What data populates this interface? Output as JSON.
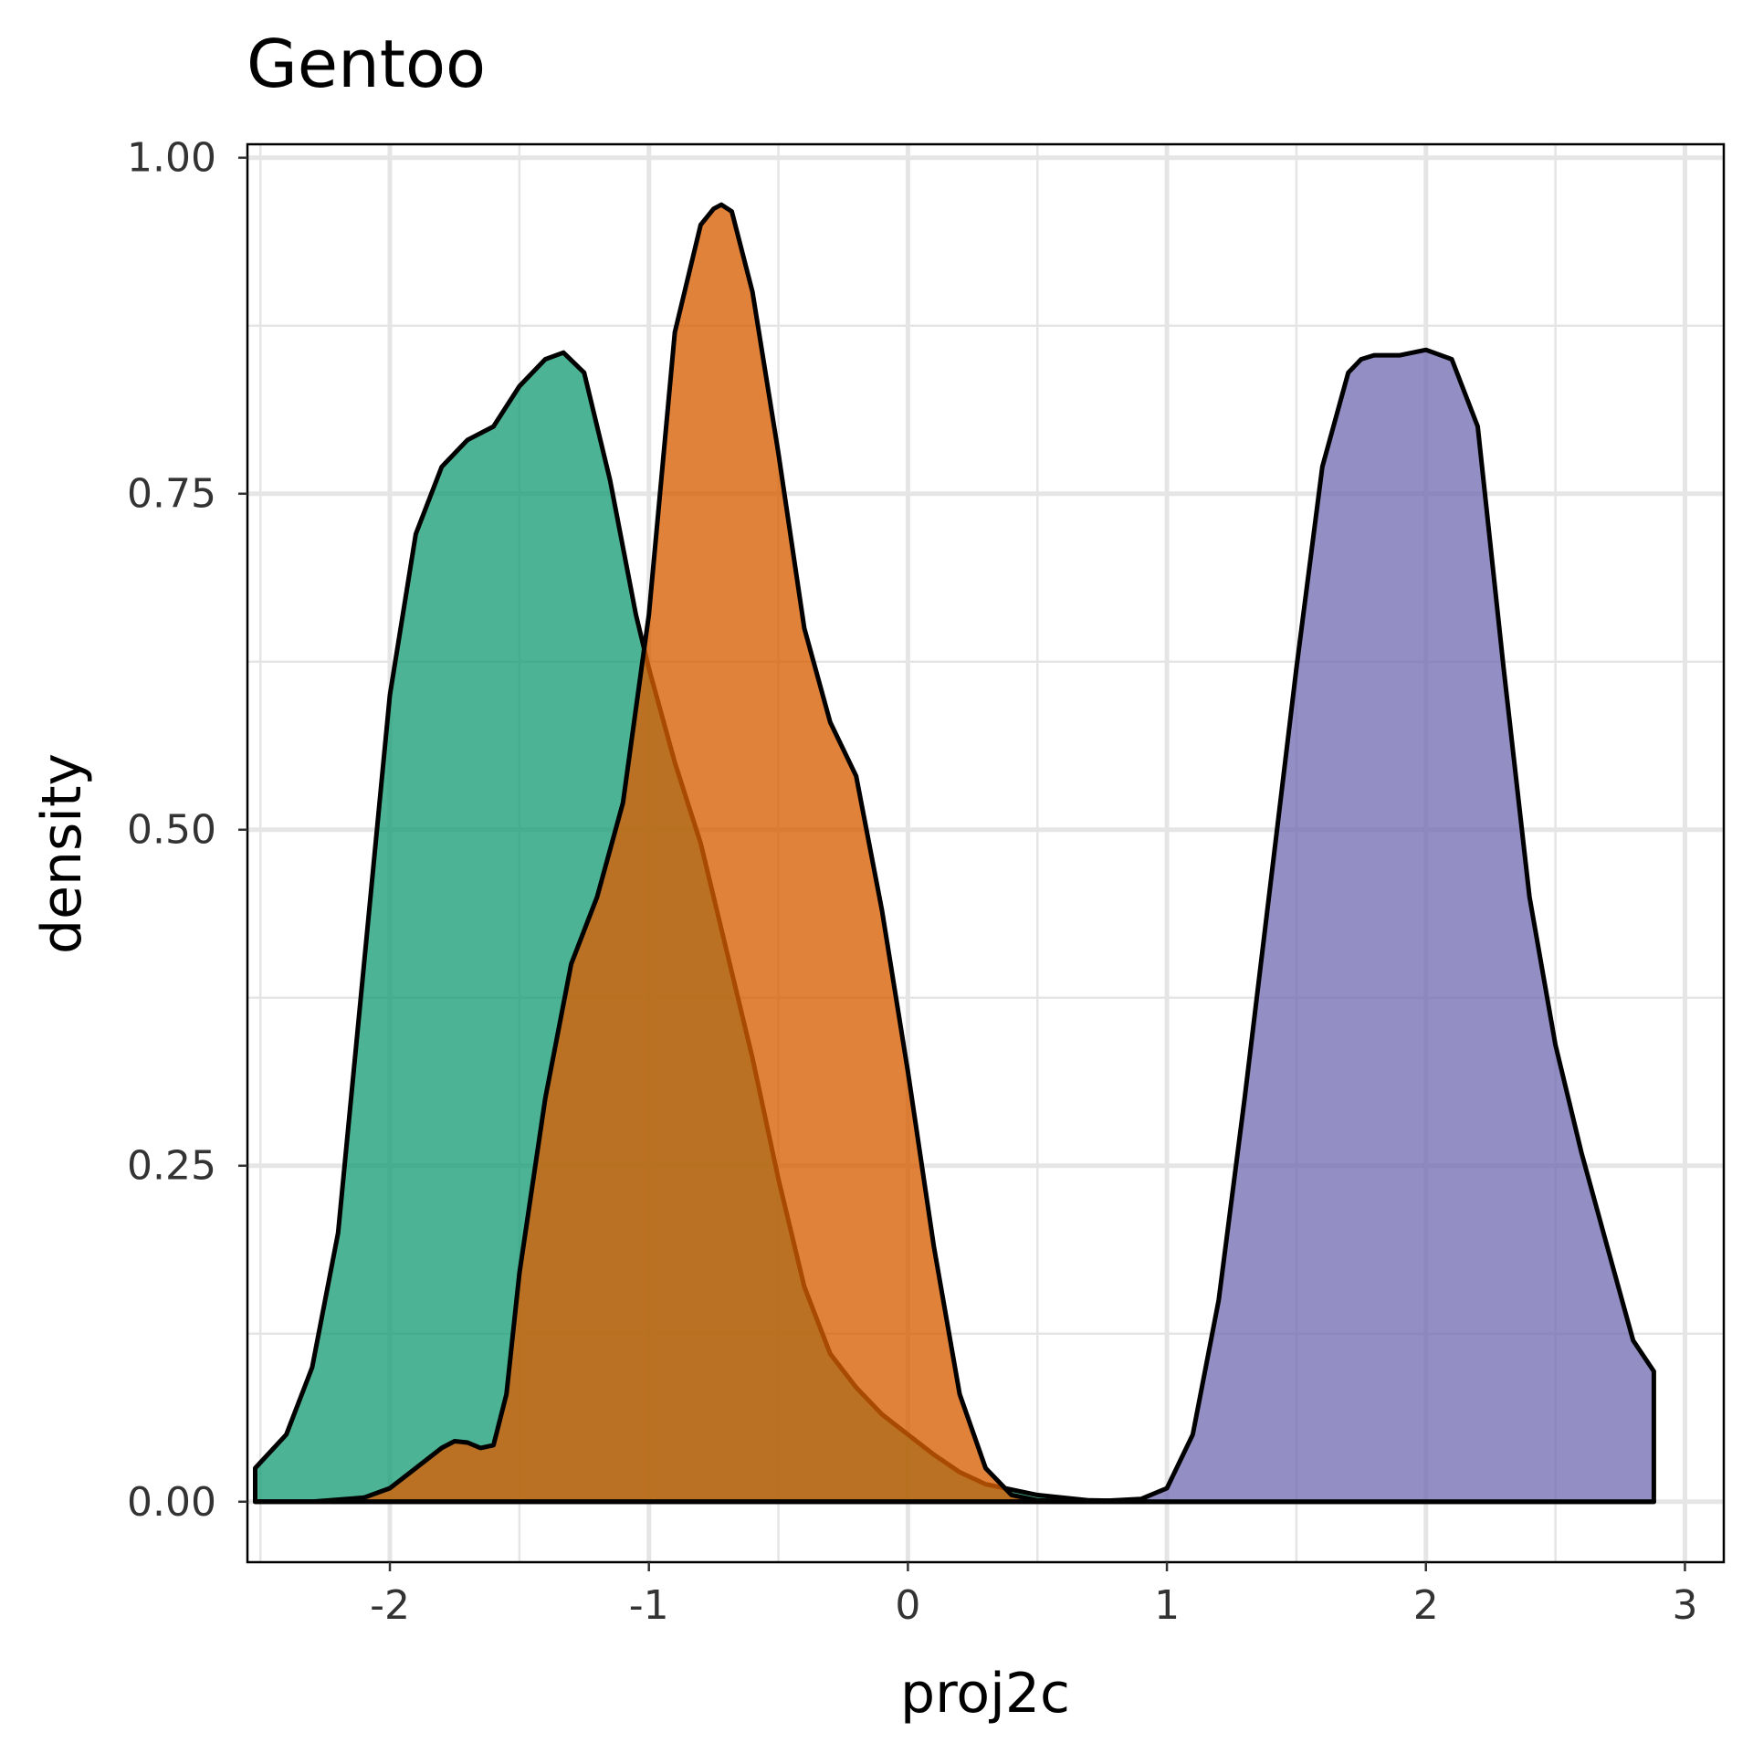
{
  "chart_data": {
    "type": "area",
    "title": "Gentoo",
    "xlabel": "proj2c",
    "ylabel": "density",
    "xlim": [
      -2.55,
      3.15
    ],
    "ylim": [
      -0.045,
      1.01
    ],
    "x_ticks": [
      -2,
      -1,
      0,
      1,
      2,
      3
    ],
    "x_tick_labels": [
      "-2",
      "-1",
      "0",
      "1",
      "2",
      "3"
    ],
    "y_ticks": [
      0,
      0.25,
      0.5,
      0.75,
      1
    ],
    "y_tick_labels": [
      "0.00",
      "0.25",
      "0.50",
      "0.75",
      "1.00"
    ],
    "x_minor_ticks": [
      -2.5,
      -1.5,
      -0.5,
      0.5,
      1.5,
      2.5
    ],
    "y_minor_ticks": [
      0.125,
      0.375,
      0.625,
      0.875
    ],
    "grid": true,
    "legend": "none",
    "series": [
      {
        "color": "#1b9e77",
        "x": [
          -2.52,
          -2.4,
          -2.3,
          -2.2,
          -2.1,
          -2.0,
          -1.9,
          -1.8,
          -1.7,
          -1.6,
          -1.5,
          -1.4,
          -1.33,
          -1.25,
          -1.15,
          -1.05,
          -1.0,
          -0.9,
          -0.8,
          -0.7,
          -0.6,
          -0.5,
          -0.4,
          -0.3,
          -0.2,
          -0.1,
          0.0,
          0.1,
          0.2,
          0.3,
          0.5,
          0.7,
          1.0,
          1.5,
          2.0,
          2.5,
          2.88
        ],
        "y": [
          0.025,
          0.05,
          0.1,
          0.2,
          0.4,
          0.6,
          0.72,
          0.77,
          0.79,
          0.8,
          0.83,
          0.85,
          0.855,
          0.84,
          0.76,
          0.66,
          0.62,
          0.55,
          0.49,
          0.41,
          0.33,
          0.24,
          0.16,
          0.11,
          0.085,
          0.065,
          0.05,
          0.035,
          0.022,
          0.013,
          0.005,
          0.001,
          0,
          0,
          0,
          0,
          0
        ]
      },
      {
        "color": "#d95f02",
        "x": [
          -2.52,
          -2.3,
          -2.1,
          -2.0,
          -1.9,
          -1.8,
          -1.75,
          -1.7,
          -1.65,
          -1.6,
          -1.55,
          -1.5,
          -1.4,
          -1.3,
          -1.2,
          -1.1,
          -1.0,
          -0.9,
          -0.8,
          -0.75,
          -0.72,
          -0.68,
          -0.6,
          -0.5,
          -0.4,
          -0.3,
          -0.2,
          -0.1,
          0.0,
          0.1,
          0.2,
          0.3,
          0.4,
          0.5,
          0.7,
          1.0,
          1.5,
          2.0,
          2.5,
          2.88
        ],
        "y": [
          0,
          0,
          0.003,
          0.01,
          0.025,
          0.04,
          0.045,
          0.044,
          0.04,
          0.042,
          0.08,
          0.17,
          0.3,
          0.4,
          0.45,
          0.52,
          0.66,
          0.87,
          0.95,
          0.962,
          0.965,
          0.96,
          0.9,
          0.78,
          0.65,
          0.58,
          0.54,
          0.44,
          0.32,
          0.19,
          0.08,
          0.025,
          0.005,
          0.001,
          0,
          0,
          0,
          0,
          0,
          0
        ]
      },
      {
        "color": "#7570b3",
        "x": [
          -2.52,
          0.0,
          0.7,
          0.9,
          1.0,
          1.1,
          1.2,
          1.3,
          1.4,
          1.5,
          1.6,
          1.7,
          1.75,
          1.8,
          1.9,
          2.0,
          2.1,
          2.2,
          2.3,
          2.4,
          2.5,
          2.6,
          2.7,
          2.8,
          2.88
        ],
        "y": [
          0,
          0,
          0,
          0.002,
          0.01,
          0.05,
          0.15,
          0.3,
          0.46,
          0.62,
          0.77,
          0.84,
          0.85,
          0.853,
          0.853,
          0.857,
          0.85,
          0.8,
          0.62,
          0.45,
          0.34,
          0.26,
          0.19,
          0.12,
          0.097
        ]
      }
    ]
  }
}
